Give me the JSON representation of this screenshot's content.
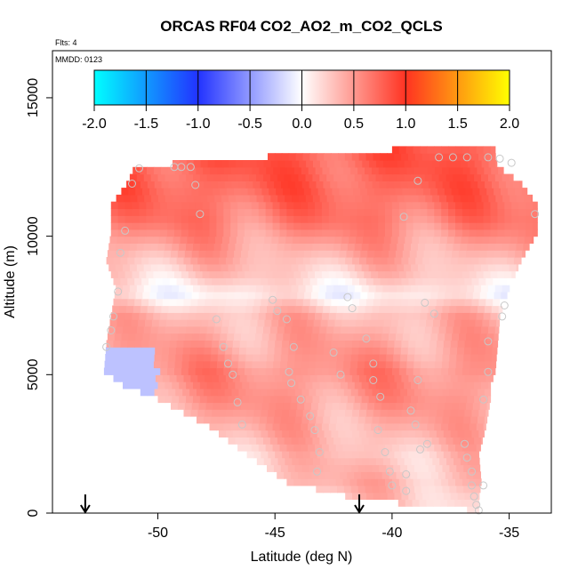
{
  "chart_data": {
    "type": "heatmap",
    "title": "ORCAS RF04 CO2_AO2_m_CO2_QCLS",
    "annotations": {
      "flights": "Flts: 4",
      "mmdd": "MMDD: 0123"
    },
    "xlabel": "Latitude (deg N)",
    "ylabel": "Altitude (m)",
    "xlim": [
      -54.5,
      -33.2
    ],
    "ylim": [
      0,
      16700
    ],
    "x_ticks": [
      -50,
      -45,
      -40,
      -35
    ],
    "x_tick_labels": [
      "-50",
      "-45",
      "-40",
      "-35"
    ],
    "y_ticks": [
      0,
      5000,
      10000,
      15000
    ],
    "y_tick_labels": [
      "0",
      "5000",
      "10000",
      "15000"
    ],
    "colorbar": {
      "range": [
        -2.0,
        2.0
      ],
      "ticks": [
        -2.0,
        -1.5,
        -1.0,
        -0.5,
        0.0,
        0.5,
        1.0,
        1.5,
        2.0
      ],
      "tick_labels": [
        "-2.0",
        "-1.5",
        "-1.0",
        "-0.5",
        "0.0",
        "0.5",
        "1.0",
        "1.5",
        "2.0"
      ],
      "stops": [
        {
          "v": -2.0,
          "color": "#00FFFF"
        },
        {
          "v": -1.0,
          "color": "#2233FF"
        },
        {
          "v": 0.0,
          "color": "#FFFFFF"
        },
        {
          "v": 1.0,
          "color": "#FF3322"
        },
        {
          "v": 2.0,
          "color": "#FFFF00"
        }
      ]
    },
    "heatmap_grid": {
      "lat_step": 0.3,
      "alt_step": 250,
      "envelope": [
        {
          "alt": 0,
          "lat_min": -36.8,
          "lat_max": -36.3
        },
        {
          "alt": 400,
          "lat_min": -41.5,
          "lat_max": -36.3
        },
        {
          "alt": 1000,
          "lat_min": -44.5,
          "lat_max": -36.2
        },
        {
          "alt": 2000,
          "lat_min": -46.2,
          "lat_max": -36.3
        },
        {
          "alt": 3000,
          "lat_min": -47.8,
          "lat_max": -36.0
        },
        {
          "alt": 4000,
          "lat_min": -50.0,
          "lat_max": -35.8
        },
        {
          "alt": 4500,
          "lat_min": -51.5,
          "lat_max": -35.8
        },
        {
          "alt": 5000,
          "lat_min": -52.3,
          "lat_max": -35.6
        },
        {
          "alt": 6000,
          "lat_min": -52.2,
          "lat_max": -35.5
        },
        {
          "alt": 7000,
          "lat_min": -52.0,
          "lat_max": -35.4
        },
        {
          "alt": 8000,
          "lat_min": -51.8,
          "lat_max": -35.0
        },
        {
          "alt": 9000,
          "lat_min": -52.2,
          "lat_max": -34.5
        },
        {
          "alt": 10000,
          "lat_min": -52.0,
          "lat_max": -33.8
        },
        {
          "alt": 11000,
          "lat_min": -52.0,
          "lat_max": -33.8
        },
        {
          "alt": 11800,
          "lat_min": -51.3,
          "lat_max": -34.5
        },
        {
          "alt": 12400,
          "lat_min": -51.0,
          "lat_max": -35.5
        },
        {
          "alt": 12800,
          "lat_min": -44.5,
          "lat_max": -35.6
        },
        {
          "alt": 13000,
          "lat_min": -40.0,
          "lat_max": -35.6
        }
      ],
      "value_profile": [
        {
          "alt": 0,
          "v": 0.2
        },
        {
          "alt": 1000,
          "v": 0.35
        },
        {
          "alt": 2000,
          "v": 0.3
        },
        {
          "alt": 3000,
          "v": 0.4
        },
        {
          "alt": 4000,
          "v": 0.5
        },
        {
          "alt": 5000,
          "v": 0.55
        },
        {
          "alt": 6000,
          "v": 0.45
        },
        {
          "alt": 7000,
          "v": 0.35
        },
        {
          "alt": 7800,
          "v": 0.05
        },
        {
          "alt": 8500,
          "v": 0.25
        },
        {
          "alt": 9500,
          "v": 0.45
        },
        {
          "alt": 10500,
          "v": 0.65
        },
        {
          "alt": 11500,
          "v": 0.75
        },
        {
          "alt": 12500,
          "v": 0.8
        },
        {
          "alt": 13000,
          "v": 0.8
        }
      ],
      "negative_region": {
        "lat_min": -52.4,
        "lat_max": -50.2,
        "alt_min": 4100,
        "alt_max": 5800,
        "v": -0.3
      }
    },
    "flight_track_points": [
      {
        "lat": -51.1,
        "alt": 11900
      },
      {
        "lat": -50.8,
        "alt": 12450
      },
      {
        "lat": -49.3,
        "alt": 12500
      },
      {
        "lat": -49.0,
        "alt": 12500
      },
      {
        "lat": -48.6,
        "alt": 12500
      },
      {
        "lat": -48.4,
        "alt": 11850
      },
      {
        "lat": -48.2,
        "alt": 10800
      },
      {
        "lat": -51.4,
        "alt": 10200
      },
      {
        "lat": -51.6,
        "alt": 9400
      },
      {
        "lat": -51.7,
        "alt": 8000
      },
      {
        "lat": -51.9,
        "alt": 7100
      },
      {
        "lat": -52.0,
        "alt": 6600
      },
      {
        "lat": -52.2,
        "alt": 6000
      },
      {
        "lat": -47.5,
        "alt": 7000
      },
      {
        "lat": -47.2,
        "alt": 6000
      },
      {
        "lat": -47.0,
        "alt": 5400
      },
      {
        "lat": -46.8,
        "alt": 5000
      },
      {
        "lat": -46.6,
        "alt": 4000
      },
      {
        "lat": -46.4,
        "alt": 3200
      },
      {
        "lat": -45.1,
        "alt": 7700
      },
      {
        "lat": -44.9,
        "alt": 7300
      },
      {
        "lat": -44.5,
        "alt": 7000
      },
      {
        "lat": -44.2,
        "alt": 6000
      },
      {
        "lat": -44.4,
        "alt": 5100
      },
      {
        "lat": -44.3,
        "alt": 4700
      },
      {
        "lat": -43.9,
        "alt": 4100
      },
      {
        "lat": -43.5,
        "alt": 3500
      },
      {
        "lat": -43.3,
        "alt": 3000
      },
      {
        "lat": -43.1,
        "alt": 2200
      },
      {
        "lat": -43.2,
        "alt": 1500
      },
      {
        "lat": -42.5,
        "alt": 5800
      },
      {
        "lat": -42.2,
        "alt": 5000
      },
      {
        "lat": -41.9,
        "alt": 7800
      },
      {
        "lat": -41.7,
        "alt": 7400
      },
      {
        "lat": -41.1,
        "alt": 6300
      },
      {
        "lat": -40.8,
        "alt": 5400
      },
      {
        "lat": -40.8,
        "alt": 4800
      },
      {
        "lat": -40.5,
        "alt": 4200
      },
      {
        "lat": -40.6,
        "alt": 3000
      },
      {
        "lat": -40.3,
        "alt": 2200
      },
      {
        "lat": -40.1,
        "alt": 1500
      },
      {
        "lat": -40.0,
        "alt": 1000
      },
      {
        "lat": -39.4,
        "alt": 1400
      },
      {
        "lat": -39.4,
        "alt": 800
      },
      {
        "lat": -39.2,
        "alt": 3700
      },
      {
        "lat": -39.0,
        "alt": 3200
      },
      {
        "lat": -38.8,
        "alt": 2300
      },
      {
        "lat": -38.5,
        "alt": 2500
      },
      {
        "lat": -38.9,
        "alt": 4800
      },
      {
        "lat": -38.6,
        "alt": 7600
      },
      {
        "lat": -38.2,
        "alt": 7200
      },
      {
        "lat": -38.9,
        "alt": 12000
      },
      {
        "lat": -39.5,
        "alt": 10700
      },
      {
        "lat": -38.0,
        "alt": 12850
      },
      {
        "lat": -37.4,
        "alt": 12850
      },
      {
        "lat": -36.8,
        "alt": 12850
      },
      {
        "lat": -35.9,
        "alt": 12850
      },
      {
        "lat": -35.4,
        "alt": 12800
      },
      {
        "lat": -34.9,
        "alt": 12650
      },
      {
        "lat": -33.9,
        "alt": 10800
      },
      {
        "lat": -35.2,
        "alt": 7500
      },
      {
        "lat": -35.3,
        "alt": 7100
      },
      {
        "lat": -35.9,
        "alt": 6200
      },
      {
        "lat": -35.9,
        "alt": 5100
      },
      {
        "lat": -36.1,
        "alt": 4100
      },
      {
        "lat": -36.9,
        "alt": 2500
      },
      {
        "lat": -36.8,
        "alt": 2000
      },
      {
        "lat": -36.6,
        "alt": 1500
      },
      {
        "lat": -36.6,
        "alt": 1000
      },
      {
        "lat": -36.5,
        "alt": 600
      },
      {
        "lat": -36.4,
        "alt": 300
      },
      {
        "lat": -36.1,
        "alt": 1000
      },
      {
        "lat": -36.3,
        "alt": 100
      }
    ],
    "profile_markers_lat": [
      -53.1,
      -41.4
    ]
  }
}
